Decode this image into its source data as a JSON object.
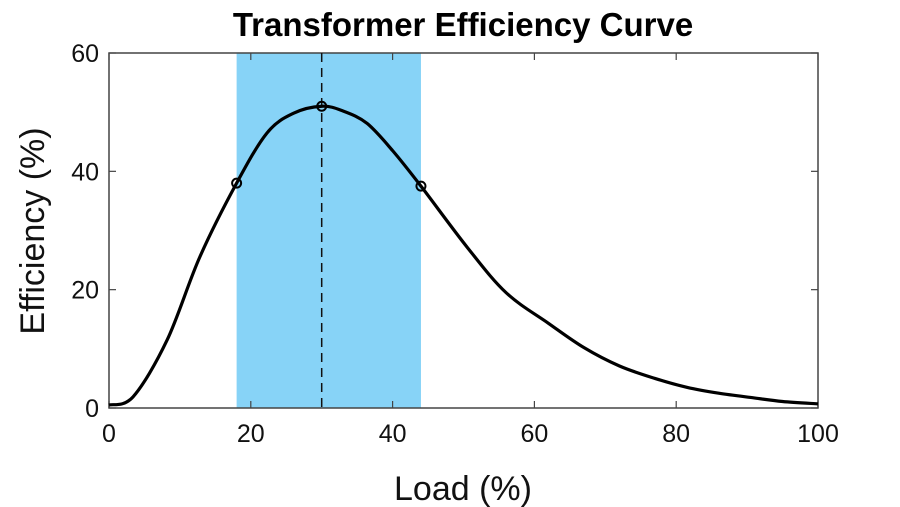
{
  "chart_data": {
    "type": "line",
    "title": "Transformer Efficiency Curve",
    "xlabel": "Load (%)",
    "ylabel": "Efficiency (%)",
    "xlim": [
      0,
      100
    ],
    "ylim": [
      0,
      60
    ],
    "xticks": [
      0,
      20,
      40,
      60,
      80,
      100
    ],
    "yticks": [
      0,
      20,
      40,
      60
    ],
    "grid": false,
    "series": [
      {
        "color": "#000000",
        "x": [
          0,
          3.4,
          8.2,
          12.8,
          18,
          22.3,
          26,
          30,
          33,
          36.4,
          40,
          44,
          50.5,
          56,
          62,
          67,
          72,
          77,
          81.5,
          86,
          91,
          95,
          100
        ],
        "y": [
          0.5,
          1.9,
          11.5,
          25.5,
          38,
          46.5,
          49.8,
          51,
          50.2,
          48.1,
          43.5,
          37.5,
          27.2,
          19.5,
          14.3,
          10.2,
          7.1,
          5,
          3.5,
          2.5,
          1.7,
          1.1,
          0.7
        ]
      }
    ],
    "markers": {
      "x": [
        18,
        30,
        44
      ],
      "y": [
        38,
        51,
        37.5
      ],
      "style": "open-circle"
    },
    "shaded_region": {
      "x": [
        18,
        44
      ],
      "color": "#87d3f7"
    },
    "reference_line": {
      "x": 30,
      "style": "dashed"
    }
  }
}
